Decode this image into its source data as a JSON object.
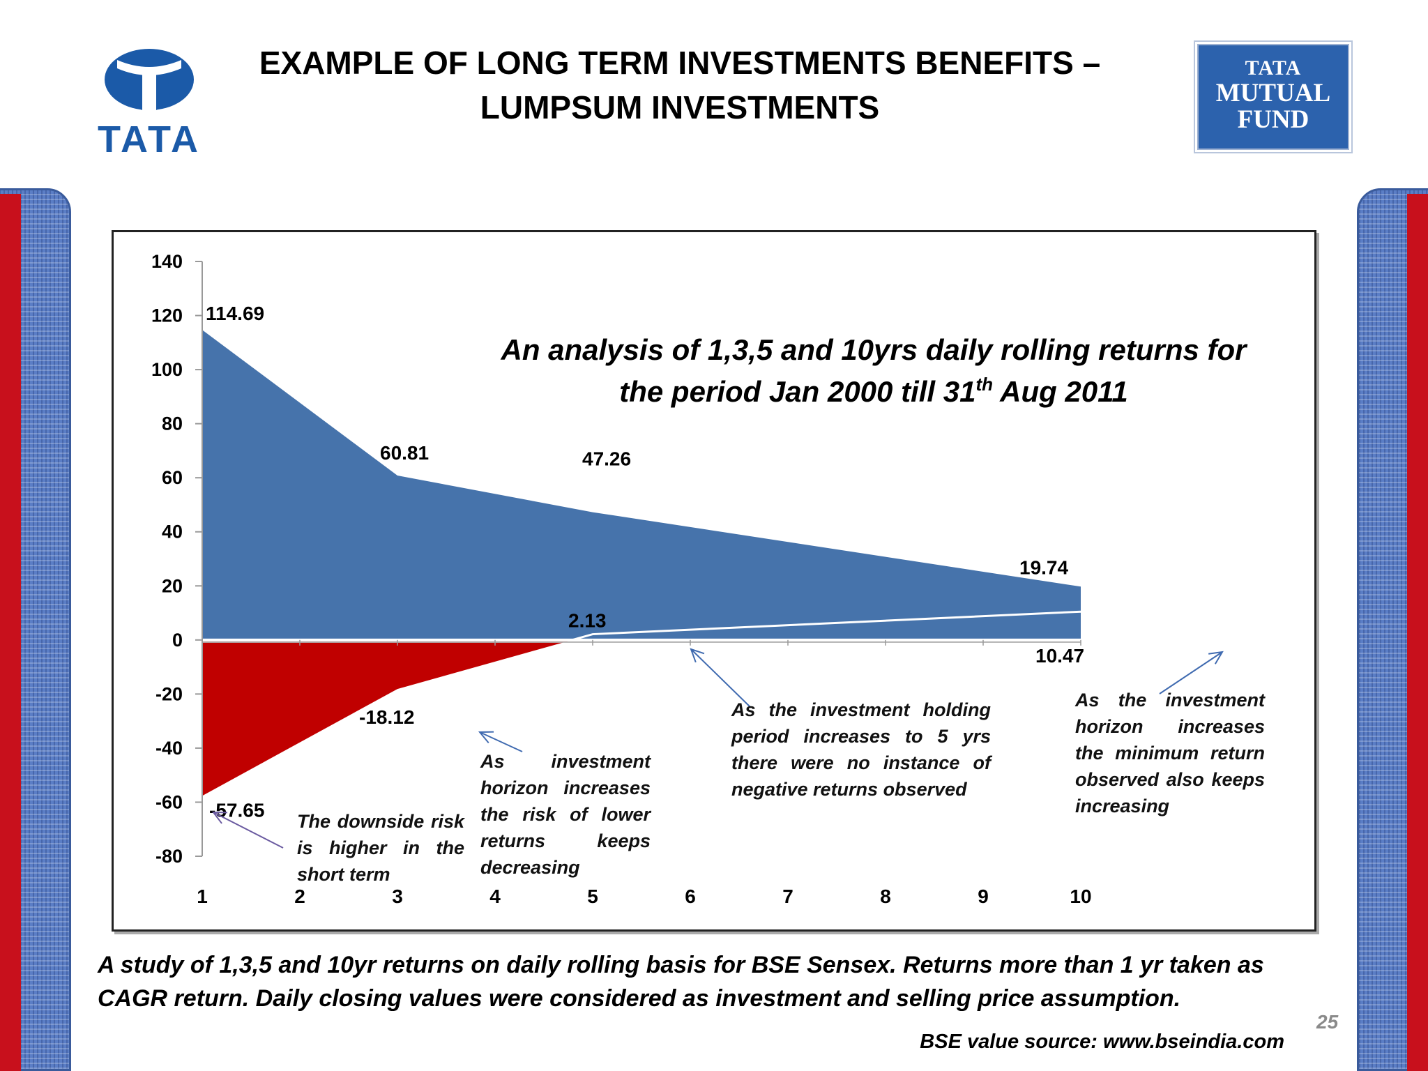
{
  "slide": {
    "title_line1": "EXAMPLE OF LONG TERM INVESTMENTS BENEFITS –",
    "title_line2": "LUMPSUM INVESTMENTS",
    "logo_left_text": "TATA",
    "logo_right_line1": "TATA",
    "logo_right_line2": "MUTUAL",
    "logo_right_line3": "FUND",
    "footer": "A study of 1,3,5 and 10yr returns on daily rolling basis for BSE Sensex. Returns more than 1 yr taken as CAGR return. Daily closing values were considered as investment and selling price assumption.",
    "source": "BSE value source: www.bseindia.com",
    "page_number": "25",
    "notes": {
      "short_term": "The downside risk is higher in the short term",
      "horizon": "As investment horizon increases the risk of lower returns keeps decreasing",
      "five_years": "As the investment holding period increases to 5 yrs there were no instance of negative returns observed",
      "minimum": "As the investment horizon increases the minimum return observed also keeps increasing"
    },
    "colors": {
      "max_area": "#4673ab",
      "min_area": "#c00000",
      "brand_blue": "#1b5aa8",
      "side_red": "#c8101c"
    }
  },
  "chart_data": {
    "type": "area",
    "title_line1": "An analysis of 1,3,5 and 10yrs daily rolling returns for",
    "title_line2_pre": "the period Jan 2000 till 31",
    "title_sup": "th",
    "title_line2_post": " Aug 2011",
    "x": [
      1,
      2,
      3,
      4,
      5,
      6,
      7,
      8,
      9,
      10
    ],
    "xlim": [
      1,
      10
    ],
    "ylim": [
      -80,
      140
    ],
    "yticks": [
      -80,
      -60,
      -40,
      -20,
      0,
      20,
      40,
      60,
      80,
      100,
      120,
      140
    ],
    "grid": false,
    "series": [
      {
        "role": "maximum",
        "points": [
          [
            1,
            114.69
          ],
          [
            3,
            60.81
          ],
          [
            5,
            47.26
          ],
          [
            10,
            19.74
          ]
        ],
        "color": "#4673ab"
      },
      {
        "role": "minimum",
        "points": [
          [
            1,
            -57.65
          ],
          [
            3,
            -18.12
          ],
          [
            5,
            2.13
          ],
          [
            10,
            10.47
          ]
        ],
        "color": "#c00000"
      }
    ],
    "data_labels": [
      {
        "x": 1,
        "y": 114.69,
        "text": "114.69"
      },
      {
        "x": 3,
        "y": 60.81,
        "text": "60.81"
      },
      {
        "x": 5,
        "y": 47.26,
        "text": "47.26"
      },
      {
        "x": 10,
        "y": 19.74,
        "text": "19.74"
      },
      {
        "x": 1,
        "y": -57.65,
        "text": "-57.65"
      },
      {
        "x": 3,
        "y": -18.12,
        "text": "-18.12"
      },
      {
        "x": 5,
        "y": 2.13,
        "text": "2.13"
      },
      {
        "x": 10,
        "y": 10.47,
        "text": "10.47"
      }
    ]
  }
}
